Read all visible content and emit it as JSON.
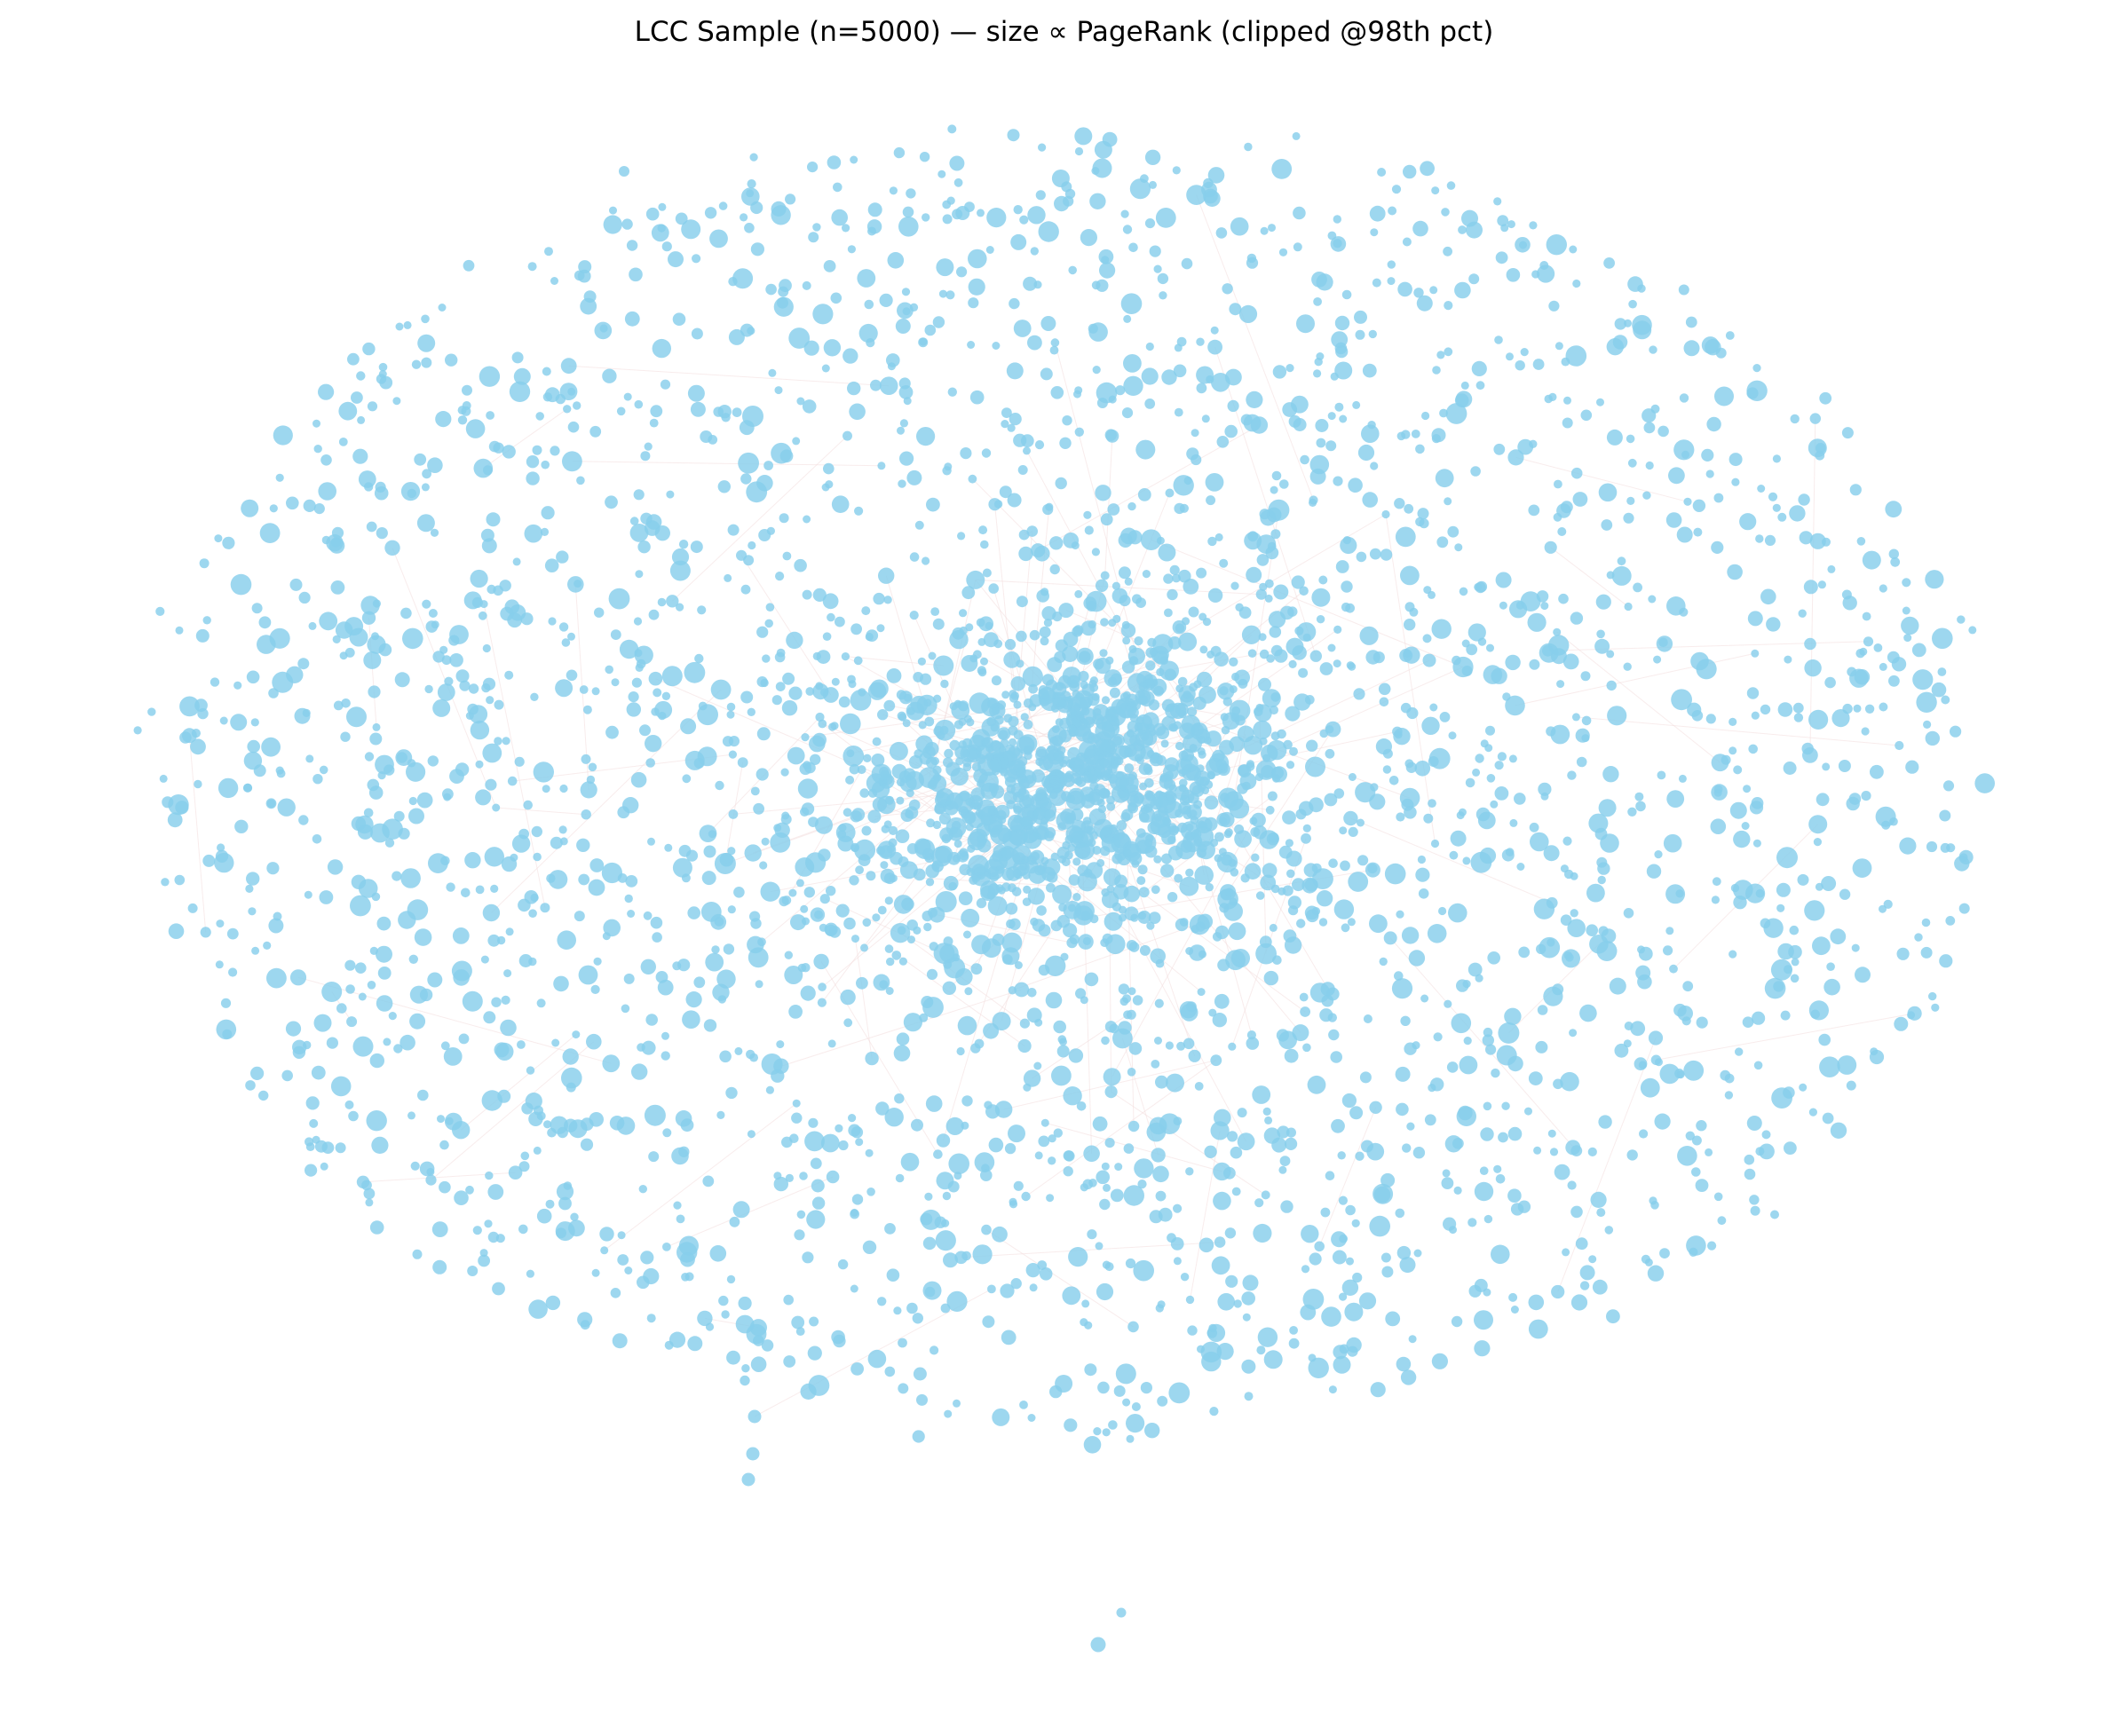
{
  "title": "LCC Sample (n=5000) — size ∝ PageRank (clipped @98th pct)",
  "chart_data": {
    "type": "network",
    "title": "LCC Sample (n=5000) — size ∝ PageRank (clipped @98th pct)",
    "node_count": 5000,
    "node_size_encoding": "PageRank (clipped at 98th percentile)",
    "layout": "force-directed, dense core with elliptical halo",
    "axes": "off",
    "grid": false,
    "legend": "none",
    "colors": {
      "node": "#87ceeb",
      "edge": "#f2dcdc",
      "background": "#ffffff"
    },
    "outlier_nodes": 6
  }
}
